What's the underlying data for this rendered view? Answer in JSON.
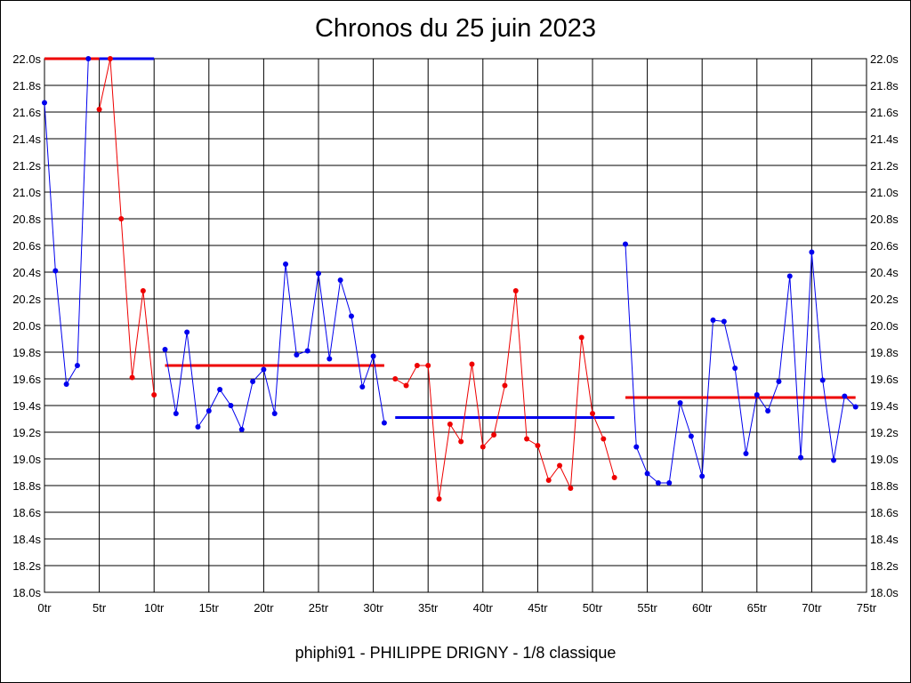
{
  "title": "Chronos du 25 juin 2023",
  "footer": "phiphi91 - PHILIPPE DRIGNY - 1/8 classique",
  "colors": {
    "blue": "#0000ee",
    "red": "#ee0000",
    "grid": "#000000"
  },
  "chart_data": {
    "type": "line",
    "title": "Chronos du 25 juin 2023",
    "x_range": [
      0,
      75
    ],
    "x_ticks": [
      "0tr",
      "5tr",
      "10tr",
      "15tr",
      "20tr",
      "25tr",
      "30tr",
      "35tr",
      "40tr",
      "45tr",
      "50tr",
      "55tr",
      "60tr",
      "65tr",
      "70tr",
      "75tr"
    ],
    "y_range": [
      18.0,
      22.0
    ],
    "y_ticks": [
      "18.0s",
      "18.2s",
      "18.4s",
      "18.6s",
      "18.8s",
      "19.0s",
      "19.2s",
      "19.4s",
      "19.6s",
      "19.8s",
      "20.0s",
      "20.2s",
      "20.4s",
      "20.6s",
      "20.8s",
      "21.0s",
      "21.2s",
      "21.4s",
      "21.6s",
      "21.8s",
      "22.0s"
    ],
    "grid": true,
    "series": [
      {
        "color": "blue",
        "x": [
          0,
          1,
          2,
          3,
          4
        ],
        "y": [
          21.67,
          20.41,
          19.56,
          19.7,
          22.0
        ]
      },
      {
        "color": "red",
        "x": [
          5,
          6,
          7,
          8,
          9,
          10
        ],
        "y": [
          21.62,
          22.0,
          20.8,
          19.61,
          20.26,
          19.48
        ]
      },
      {
        "color": "blue",
        "x": [
          11,
          12,
          13,
          14,
          15,
          16,
          17,
          18,
          19,
          20,
          21,
          22,
          23,
          24,
          25,
          26,
          27,
          28,
          29,
          30,
          31
        ],
        "y": [
          19.82,
          19.34,
          19.95,
          19.24,
          19.36,
          19.52,
          19.4,
          19.22,
          19.58,
          19.67,
          19.34,
          20.46,
          19.78,
          19.81,
          20.39,
          19.75,
          20.34,
          20.07,
          19.54,
          19.77,
          19.27
        ]
      },
      {
        "color": "red",
        "x": [
          32,
          33,
          34,
          35,
          36,
          37,
          38,
          39,
          40,
          41,
          42,
          43,
          44,
          45,
          46,
          47,
          48,
          49,
          50,
          51,
          52
        ],
        "y": [
          19.6,
          19.55,
          19.7,
          19.7,
          18.7,
          19.26,
          19.13,
          19.71,
          19.09,
          19.18,
          19.55,
          20.26,
          19.15,
          19.1,
          18.84,
          18.95,
          18.78,
          19.91,
          19.34,
          19.15,
          18.86
        ]
      },
      {
        "color": "blue",
        "x": [
          53,
          54,
          55,
          56,
          57,
          58,
          59,
          60,
          61,
          62,
          63,
          64,
          65,
          66,
          67,
          68,
          69,
          70,
          71,
          72,
          73,
          74
        ],
        "y": [
          20.61,
          19.09,
          18.89,
          18.82,
          18.82,
          19.42,
          19.17,
          18.87,
          20.04,
          20.03,
          19.68,
          19.04,
          19.48,
          19.36,
          19.58,
          20.37,
          19.01,
          20.55,
          19.59,
          18.99,
          19.47,
          19.39
        ]
      }
    ],
    "averages": [
      {
        "color": "red",
        "x": [
          0,
          5
        ],
        "y": 22.0
      },
      {
        "color": "blue",
        "x": [
          5,
          10
        ],
        "y": 22.0
      },
      {
        "color": "red",
        "x": [
          11,
          31
        ],
        "y": 19.7
      },
      {
        "color": "blue",
        "x": [
          32,
          52
        ],
        "y": 19.31
      },
      {
        "color": "red",
        "x": [
          53,
          74
        ],
        "y": 19.46
      }
    ]
  }
}
